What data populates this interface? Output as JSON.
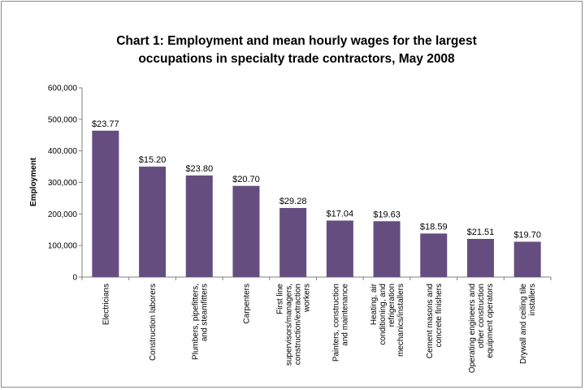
{
  "chart_data": {
    "type": "bar",
    "title_lines": [
      "Chart 1: Employment and mean hourly wages for the largest",
      "occupations in specialty trade contractors, May 2008"
    ],
    "ylabel": "Employment",
    "xlabel": "",
    "ylim": [
      0,
      600000
    ],
    "yticks": [
      {
        "value": 0,
        "label": "0"
      },
      {
        "value": 100000,
        "label": "100,000"
      },
      {
        "value": 200000,
        "label": "200,000"
      },
      {
        "value": 300000,
        "label": "300,000"
      },
      {
        "value": 400000,
        "label": "400,000"
      },
      {
        "value": 500000,
        "label": "500,000"
      },
      {
        "value": 600000,
        "label": "600,000"
      }
    ],
    "grid": false,
    "legend": "none",
    "bar_color": "#664d80",
    "categories": [
      [
        "Electricians"
      ],
      [
        "Construction laborers"
      ],
      [
        "Plumbers, pipefitters,",
        "and steamfitters"
      ],
      [
        "Carpenters"
      ],
      [
        "First line",
        "supervisors/managers,",
        "construction/extraction",
        "workers"
      ],
      [
        "Painters, construction",
        "and maintenance"
      ],
      [
        "Heating, air",
        "conditioning, and",
        "refrigeration",
        "mechanics/installers"
      ],
      [
        "Cement masons and",
        "concrete finishers"
      ],
      [
        "Operating engineers and",
        "other construction",
        "equipment operators"
      ],
      [
        "Drywall and ceiling tile",
        "installers"
      ]
    ],
    "values": [
      464000,
      350000,
      322000,
      289000,
      219000,
      179000,
      177000,
      138000,
      121000,
      112000
    ],
    "data_labels": [
      "$23.77",
      "$15.20",
      "$23.80",
      "$20.70",
      "$29.28",
      "$17.04",
      "$19.63",
      "$18.59",
      "$21.51",
      "$19.70"
    ]
  }
}
